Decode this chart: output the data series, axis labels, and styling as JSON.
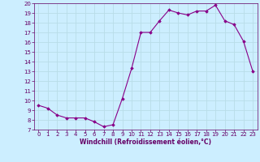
{
  "x": [
    0,
    1,
    2,
    3,
    4,
    5,
    6,
    7,
    8,
    9,
    10,
    11,
    12,
    13,
    14,
    15,
    16,
    17,
    18,
    19,
    20,
    21,
    22,
    23
  ],
  "y": [
    9.5,
    9.2,
    8.5,
    8.2,
    8.2,
    8.2,
    7.8,
    7.3,
    7.5,
    10.2,
    13.3,
    17.0,
    17.0,
    18.2,
    19.3,
    19.0,
    18.8,
    19.2,
    19.2,
    19.8,
    18.2,
    17.8,
    16.1,
    13.0
  ],
  "xlabel": "Windchill (Refroidissement éolien,°C)",
  "ylim": [
    7,
    20
  ],
  "xlim": [
    -0.5,
    23.5
  ],
  "yticks": [
    7,
    8,
    9,
    10,
    11,
    12,
    13,
    14,
    15,
    16,
    17,
    18,
    19,
    20
  ],
  "xticks": [
    0,
    1,
    2,
    3,
    4,
    5,
    6,
    7,
    8,
    9,
    10,
    11,
    12,
    13,
    14,
    15,
    16,
    17,
    18,
    19,
    20,
    21,
    22,
    23
  ],
  "line_color": "#880088",
  "marker_color": "#880088",
  "bg_color": "#cceeff",
  "grid_color": "#aaddee",
  "label_color": "#660066",
  "tick_color": "#660066",
  "label_fontsize": 5.5,
  "tick_fontsize": 5.0
}
